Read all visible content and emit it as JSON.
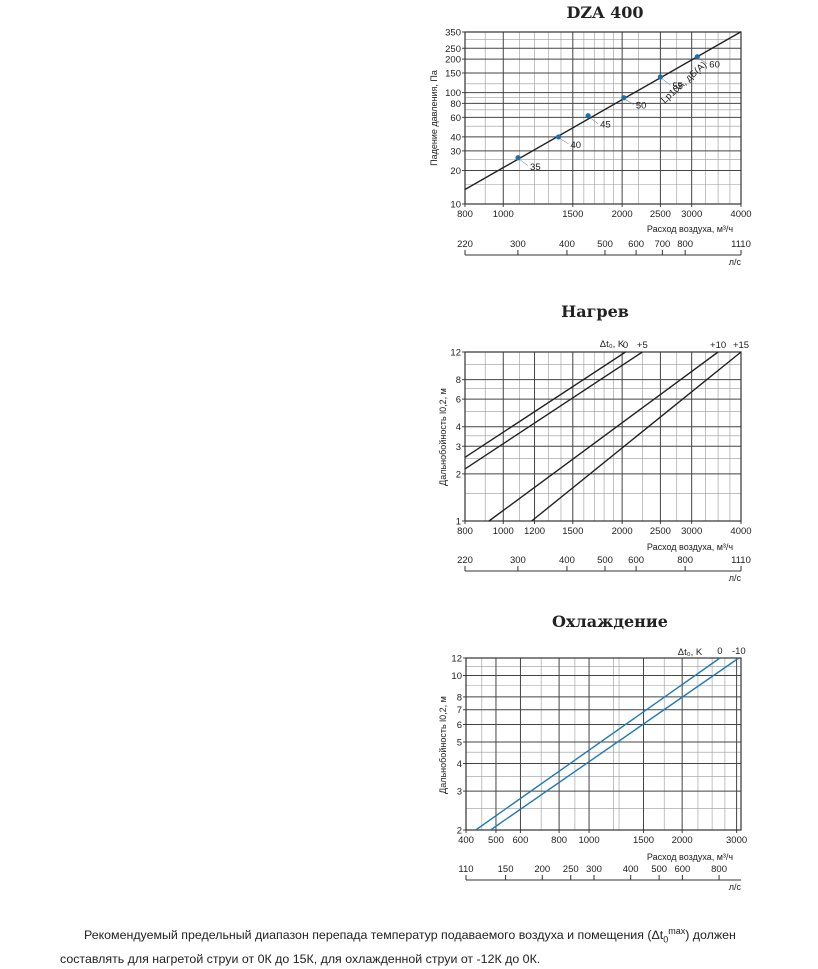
{
  "charts_titles": [
    "DZA 400",
    "Нагрев",
    "Охлаждение"
  ],
  "chart_data": [
    {
      "type": "line",
      "title": "DZA 400",
      "xlabel": "Расход воздуха, м³/ч",
      "ylabel": "Падение давления, Па",
      "x_scale": "log",
      "y_scale": "log",
      "xlim": [
        800,
        4000
      ],
      "ylim": [
        10,
        350
      ],
      "x_ticks": [
        800,
        1000,
        1500,
        2000,
        2500,
        3000,
        4000
      ],
      "y_ticks": [
        10,
        20,
        30,
        40,
        60,
        80,
        100,
        150,
        200,
        250,
        350
      ],
      "secondary_axis_label": "л/с",
      "secondary_ticks": [
        220,
        300,
        400,
        500,
        600,
        700,
        800,
        1110
      ],
      "series": [
        {
          "name": "Lp10A, дБ(A)",
          "x": [
            800,
            4000
          ],
          "y": [
            13.5,
            352
          ],
          "points": [
            {
              "x": 1090,
              "y": 26,
              "label": "35"
            },
            {
              "x": 1380,
              "y": 40,
              "label": "40"
            },
            {
              "x": 1640,
              "y": 62,
              "label": "45"
            },
            {
              "x": 2020,
              "y": 90,
              "label": "50"
            },
            {
              "x": 2500,
              "y": 138,
              "label": "55"
            },
            {
              "x": 3100,
              "y": 210,
              "label": "60"
            }
          ]
        }
      ]
    },
    {
      "type": "line",
      "title": "Нагрев",
      "xlabel": "Расход воздуха, м³/ч",
      "ylabel": "Дальнобойность l0,2, м",
      "x_scale": "log",
      "y_scale": "log",
      "xlim": [
        800,
        4000
      ],
      "ylim": [
        1,
        12
      ],
      "x_ticks": [
        800,
        1000,
        1200,
        1500,
        2000,
        2500,
        3000,
        4000
      ],
      "y_ticks": [
        1,
        2,
        3,
        4,
        6,
        8,
        12
      ],
      "secondary_axis_label": "л/с",
      "secondary_ticks": [
        220,
        300,
        400,
        500,
        600,
        800,
        1110
      ],
      "legend_title": "Δt₀, K",
      "series": [
        {
          "name": "0",
          "x": [
            800,
            2040
          ],
          "y": [
            2.55,
            12
          ]
        },
        {
          "name": "+5",
          "x": [
            800,
            2250
          ],
          "y": [
            2.15,
            12
          ]
        },
        {
          "name": "+10",
          "x": [
            920,
            3500
          ],
          "y": [
            1,
            12
          ]
        },
        {
          "name": "+15",
          "x": [
            1180,
            4000
          ],
          "y": [
            1,
            12
          ]
        }
      ]
    },
    {
      "type": "line",
      "title": "Охлаждение",
      "xlabel": "Расход воздуха, м³/ч",
      "ylabel": "Дальнобойность l0,2, м",
      "x_scale": "log",
      "y_scale": "log",
      "xlim": [
        400,
        3100
      ],
      "ylim": [
        2,
        12
      ],
      "x_ticks": [
        400,
        500,
        600,
        800,
        1000,
        1500,
        2000,
        3000
      ],
      "y_ticks": [
        2,
        3,
        4,
        5,
        6,
        7,
        8,
        10,
        12
      ],
      "secondary_axis_label": "л/с",
      "secondary_ticks": [
        110,
        150,
        200,
        250,
        300,
        400,
        500,
        600,
        800
      ],
      "legend_title": "Δt₀, K",
      "series": [
        {
          "name": "0",
          "x": [
            430,
            2650
          ],
          "y": [
            2,
            12
          ]
        },
        {
          "name": "-10",
          "x": [
            480,
            3050
          ],
          "y": [
            2,
            12
          ]
        }
      ]
    }
  ],
  "footnote": {
    "text_before": "Рекомендуемый предельный диапазон перепада температур подаваемого воздуха и помещения (Δt",
    "sub": "0",
    "sup": "max",
    "text_after": ") должен составлять для нагретой струи от 0К до 15К, для охлажденной струи от -12К до 0К."
  },
  "colors": {
    "line_dark": "#222222",
    "line_blue": "#1f7ab8",
    "grid": "#888888",
    "marker": "#1a6fb0"
  }
}
